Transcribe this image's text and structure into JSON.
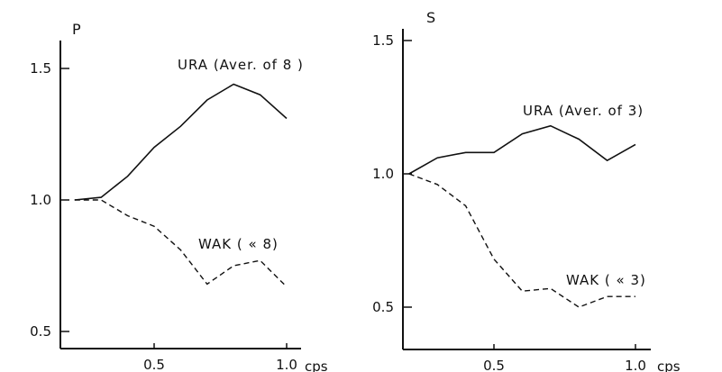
{
  "chart_data": [
    {
      "type": "line",
      "title": "P",
      "xlabel": "cps",
      "ylim": [
        0.45,
        1.6
      ],
      "xlim": [
        0.15,
        1.05
      ],
      "x_ticks": [
        0.5,
        1.0
      ],
      "x_tick_labels": [
        "0.5",
        "1.0"
      ],
      "y_ticks": [
        0.5,
        1.0,
        1.5
      ],
      "y_tick_labels": [
        "0.5",
        "1.0",
        "1.5"
      ],
      "grid": false,
      "series": [
        {
          "name": "URA (Aver. of 8 )",
          "line_style": "solid",
          "x": [
            0.2,
            0.3,
            0.4,
            0.5,
            0.6,
            0.7,
            0.8,
            0.9,
            1.0
          ],
          "y": [
            1.0,
            1.01,
            1.09,
            1.2,
            1.28,
            1.38,
            1.44,
            1.4,
            1.31
          ]
        },
        {
          "name": "WAK ( « 8)",
          "line_style": "dashed",
          "x": [
            0.2,
            0.3,
            0.4,
            0.5,
            0.6,
            0.7,
            0.8,
            0.9,
            1.0
          ],
          "y": [
            1.0,
            1.0,
            0.94,
            0.9,
            0.81,
            0.68,
            0.75,
            0.77,
            0.67
          ]
        }
      ]
    },
    {
      "type": "line",
      "title": "S",
      "xlabel": "cps",
      "ylim": [
        0.42,
        1.55
      ],
      "xlim": [
        0.15,
        1.05
      ],
      "x_ticks": [
        0.5,
        1.0
      ],
      "x_tick_labels": [
        "0.5",
        "1.0"
      ],
      "y_ticks": [
        0.5,
        1.0,
        1.5
      ],
      "y_tick_labels": [
        "0.5",
        "1.0",
        "1.5"
      ],
      "grid": false,
      "series": [
        {
          "name": "URA (Aver. of 3)",
          "line_style": "solid",
          "x": [
            0.2,
            0.3,
            0.4,
            0.5,
            0.6,
            0.7,
            0.8,
            0.9,
            1.0
          ],
          "y": [
            1.0,
            1.06,
            1.08,
            1.08,
            1.15,
            1.18,
            1.13,
            1.05,
            1.11
          ]
        },
        {
          "name": "WAK ( « 3)",
          "line_style": "dashed",
          "x": [
            0.2,
            0.3,
            0.4,
            0.5,
            0.6,
            0.7,
            0.8,
            0.9,
            1.0
          ],
          "y": [
            1.0,
            0.96,
            0.88,
            0.68,
            0.56,
            0.57,
            0.5,
            0.54,
            0.54
          ]
        }
      ]
    }
  ]
}
